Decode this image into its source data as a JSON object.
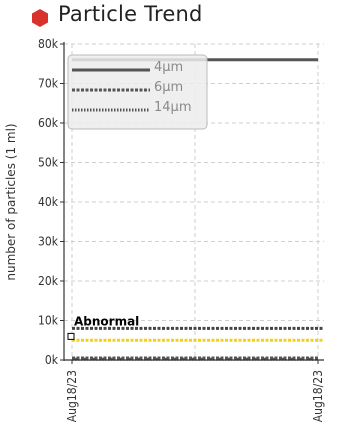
{
  "header": {
    "title": "Particle Trend",
    "icon": "hexagon-icon",
    "icon_color": "#d9322c"
  },
  "chart_data": {
    "type": "line",
    "title": "Particle Trend",
    "ylabel": "number of particles (1 ml)",
    "xlabel": "",
    "ylim": [
      0,
      80000
    ],
    "y_ticks": [
      0,
      10000,
      20000,
      30000,
      40000,
      50000,
      60000,
      70000,
      80000
    ],
    "y_tick_labels": [
      "0k",
      "10k",
      "20k",
      "30k",
      "40k",
      "50k",
      "60k",
      "70k",
      "80k"
    ],
    "x_tick_labels": [
      "Aug18/23",
      "Aug18/23"
    ],
    "grid": true,
    "legend_position": "top-left",
    "series": [
      {
        "name": "4μm",
        "style": "solid",
        "color": "#555555",
        "values": [
          76000,
          76000
        ]
      },
      {
        "name": "6μm",
        "style": "dashed",
        "color": "#555555",
        "values": [
          500,
          500
        ]
      },
      {
        "name": "14μm",
        "style": "dotted",
        "color": "#555555",
        "values": [
          200,
          200
        ]
      }
    ],
    "thresholds": [
      {
        "label": "Abnormal",
        "value": 8000,
        "color": "#444444",
        "style": "dashed"
      },
      {
        "label": "",
        "value": 5000,
        "color": "#f2d020",
        "style": "dashed"
      }
    ]
  }
}
